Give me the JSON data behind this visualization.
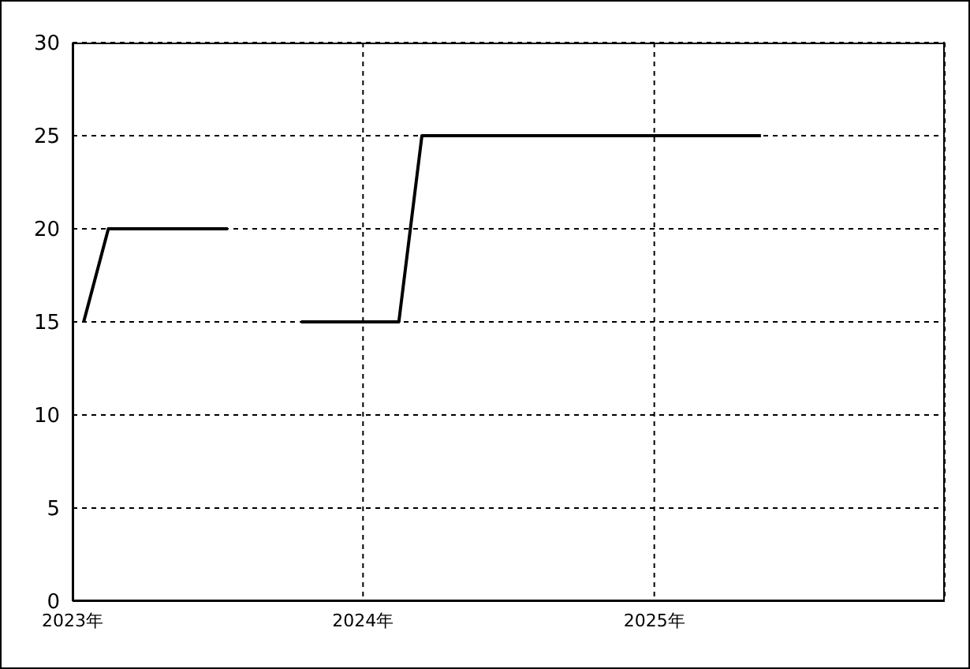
{
  "chart_data": {
    "type": "line",
    "x": [
      "2023-01-15",
      "2023-02-15",
      "2023-07-15",
      "2023-08-15",
      "2023-10-15",
      "2024-02-15",
      "2024-03-15",
      "2025-05-15"
    ],
    "series": [
      {
        "color": "#000000",
        "values": [
          15,
          20,
          20,
          null,
          15,
          15,
          25,
          25
        ]
      }
    ],
    "xlim": [
      "2023-01",
      "2026-01"
    ],
    "xticks": [
      {
        "value": "2023-01",
        "label": "2023年"
      },
      {
        "value": "2024-01",
        "label": "2024年"
      },
      {
        "value": "2025-01",
        "label": "2025年"
      }
    ],
    "ylim": [
      0,
      30
    ],
    "yticks": [
      0,
      5,
      10,
      15,
      20,
      25,
      30
    ],
    "grid": true,
    "marker": "none",
    "line_style": "solid"
  }
}
